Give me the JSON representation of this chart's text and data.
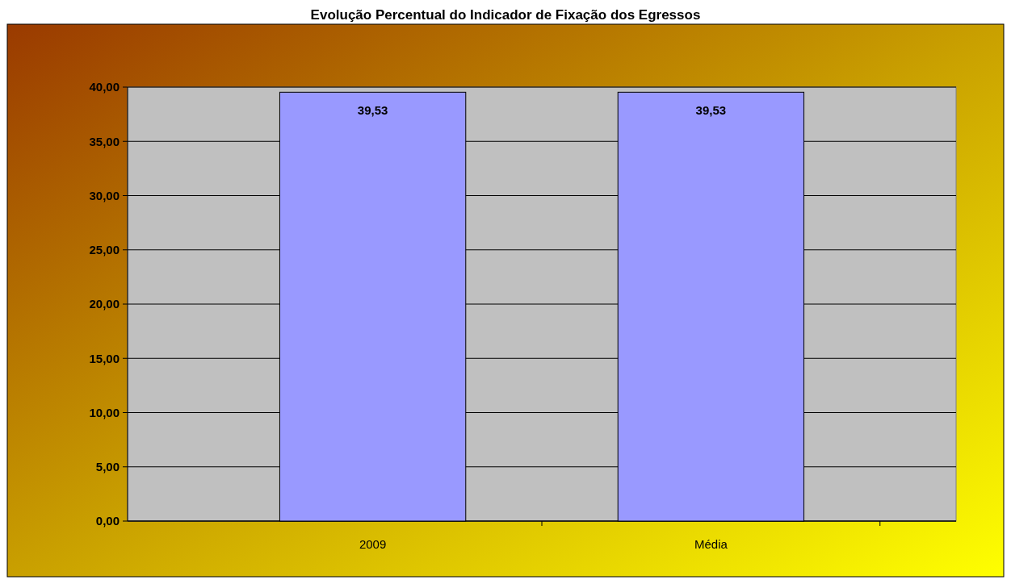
{
  "chart_data": {
    "type": "bar",
    "title": "Evolução Percentual do Indicador de Fixação dos Egressos",
    "categories": [
      "2009",
      "Média"
    ],
    "values": [
      39.53,
      39.53
    ],
    "value_labels": [
      "39,53",
      "39,53"
    ],
    "color": "#9999ff",
    "ylim": [
      0,
      40
    ],
    "yticks": [
      {
        "value": 0,
        "label": "0,00"
      },
      {
        "value": 5,
        "label": "5,00"
      },
      {
        "value": 10,
        "label": "10,00"
      },
      {
        "value": 15,
        "label": "15,00"
      },
      {
        "value": 20,
        "label": "20,00"
      },
      {
        "value": 25,
        "label": "25,00"
      },
      {
        "value": 30,
        "label": "30,00"
      },
      {
        "value": 35,
        "label": "35,00"
      },
      {
        "value": 40,
        "label": "40,00"
      }
    ],
    "grid": "y"
  }
}
